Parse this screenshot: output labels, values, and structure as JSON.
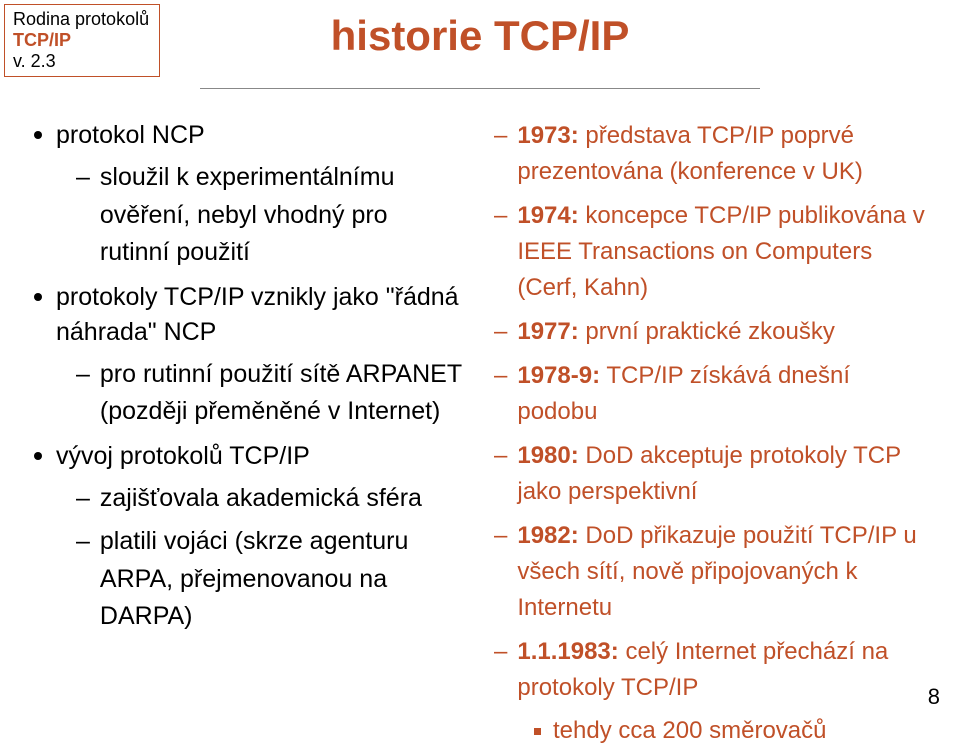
{
  "header": {
    "line1": "Rodina protokolů",
    "line2": "TCP/IP",
    "line3": "v. 2.3"
  },
  "title": "historie TCP/IP",
  "left": {
    "items": [
      {
        "text": "protokol NCP",
        "sub": [
          "sloužil k experimentálnímu ověření, nebyl vhodný pro rutinní použití"
        ]
      },
      {
        "text": "protokoly TCP/IP vznikly jako \"řádná náhrada\" NCP",
        "sub": [
          "pro rutinní použití sítě ARPANET (později přeměněné v Internet)"
        ]
      },
      {
        "text": "vývoj protokolů TCP/IP",
        "sub": [
          "zajišťovala akademická sféra",
          "platili vojáci (skrze agenturu ARPA, přejmenovanou na DARPA)"
        ]
      }
    ]
  },
  "right": {
    "items": [
      {
        "year": "1973:",
        "text": " představa TCP/IP poprvé prezentována (konference v UK)"
      },
      {
        "year": "1974:",
        "text": " koncepce TCP/IP publikována v IEEE Transactions on Computers (Cerf, Kahn)"
      },
      {
        "year": "1977:",
        "text": " první praktické zkoušky"
      },
      {
        "year": "1978-9:",
        "text": " TCP/IP získává dnešní podobu"
      },
      {
        "year": "1980:",
        "text": " DoD akceptuje protokoly TCP jako perspektivní"
      },
      {
        "year": "1982:",
        "text": " DoD přikazuje použití TCP/IP u všech sítí, nově připojovaných k Internetu"
      },
      {
        "year": "1.1.1983:",
        "text": " celý Internet přechází na protokoly TCP/IP",
        "sub": "tehdy cca 200 směrovačů"
      }
    ]
  },
  "page": "8",
  "colors": {
    "accent": "#c05028",
    "text": "#000000",
    "background": "#ffffff",
    "rule": "#888888"
  }
}
